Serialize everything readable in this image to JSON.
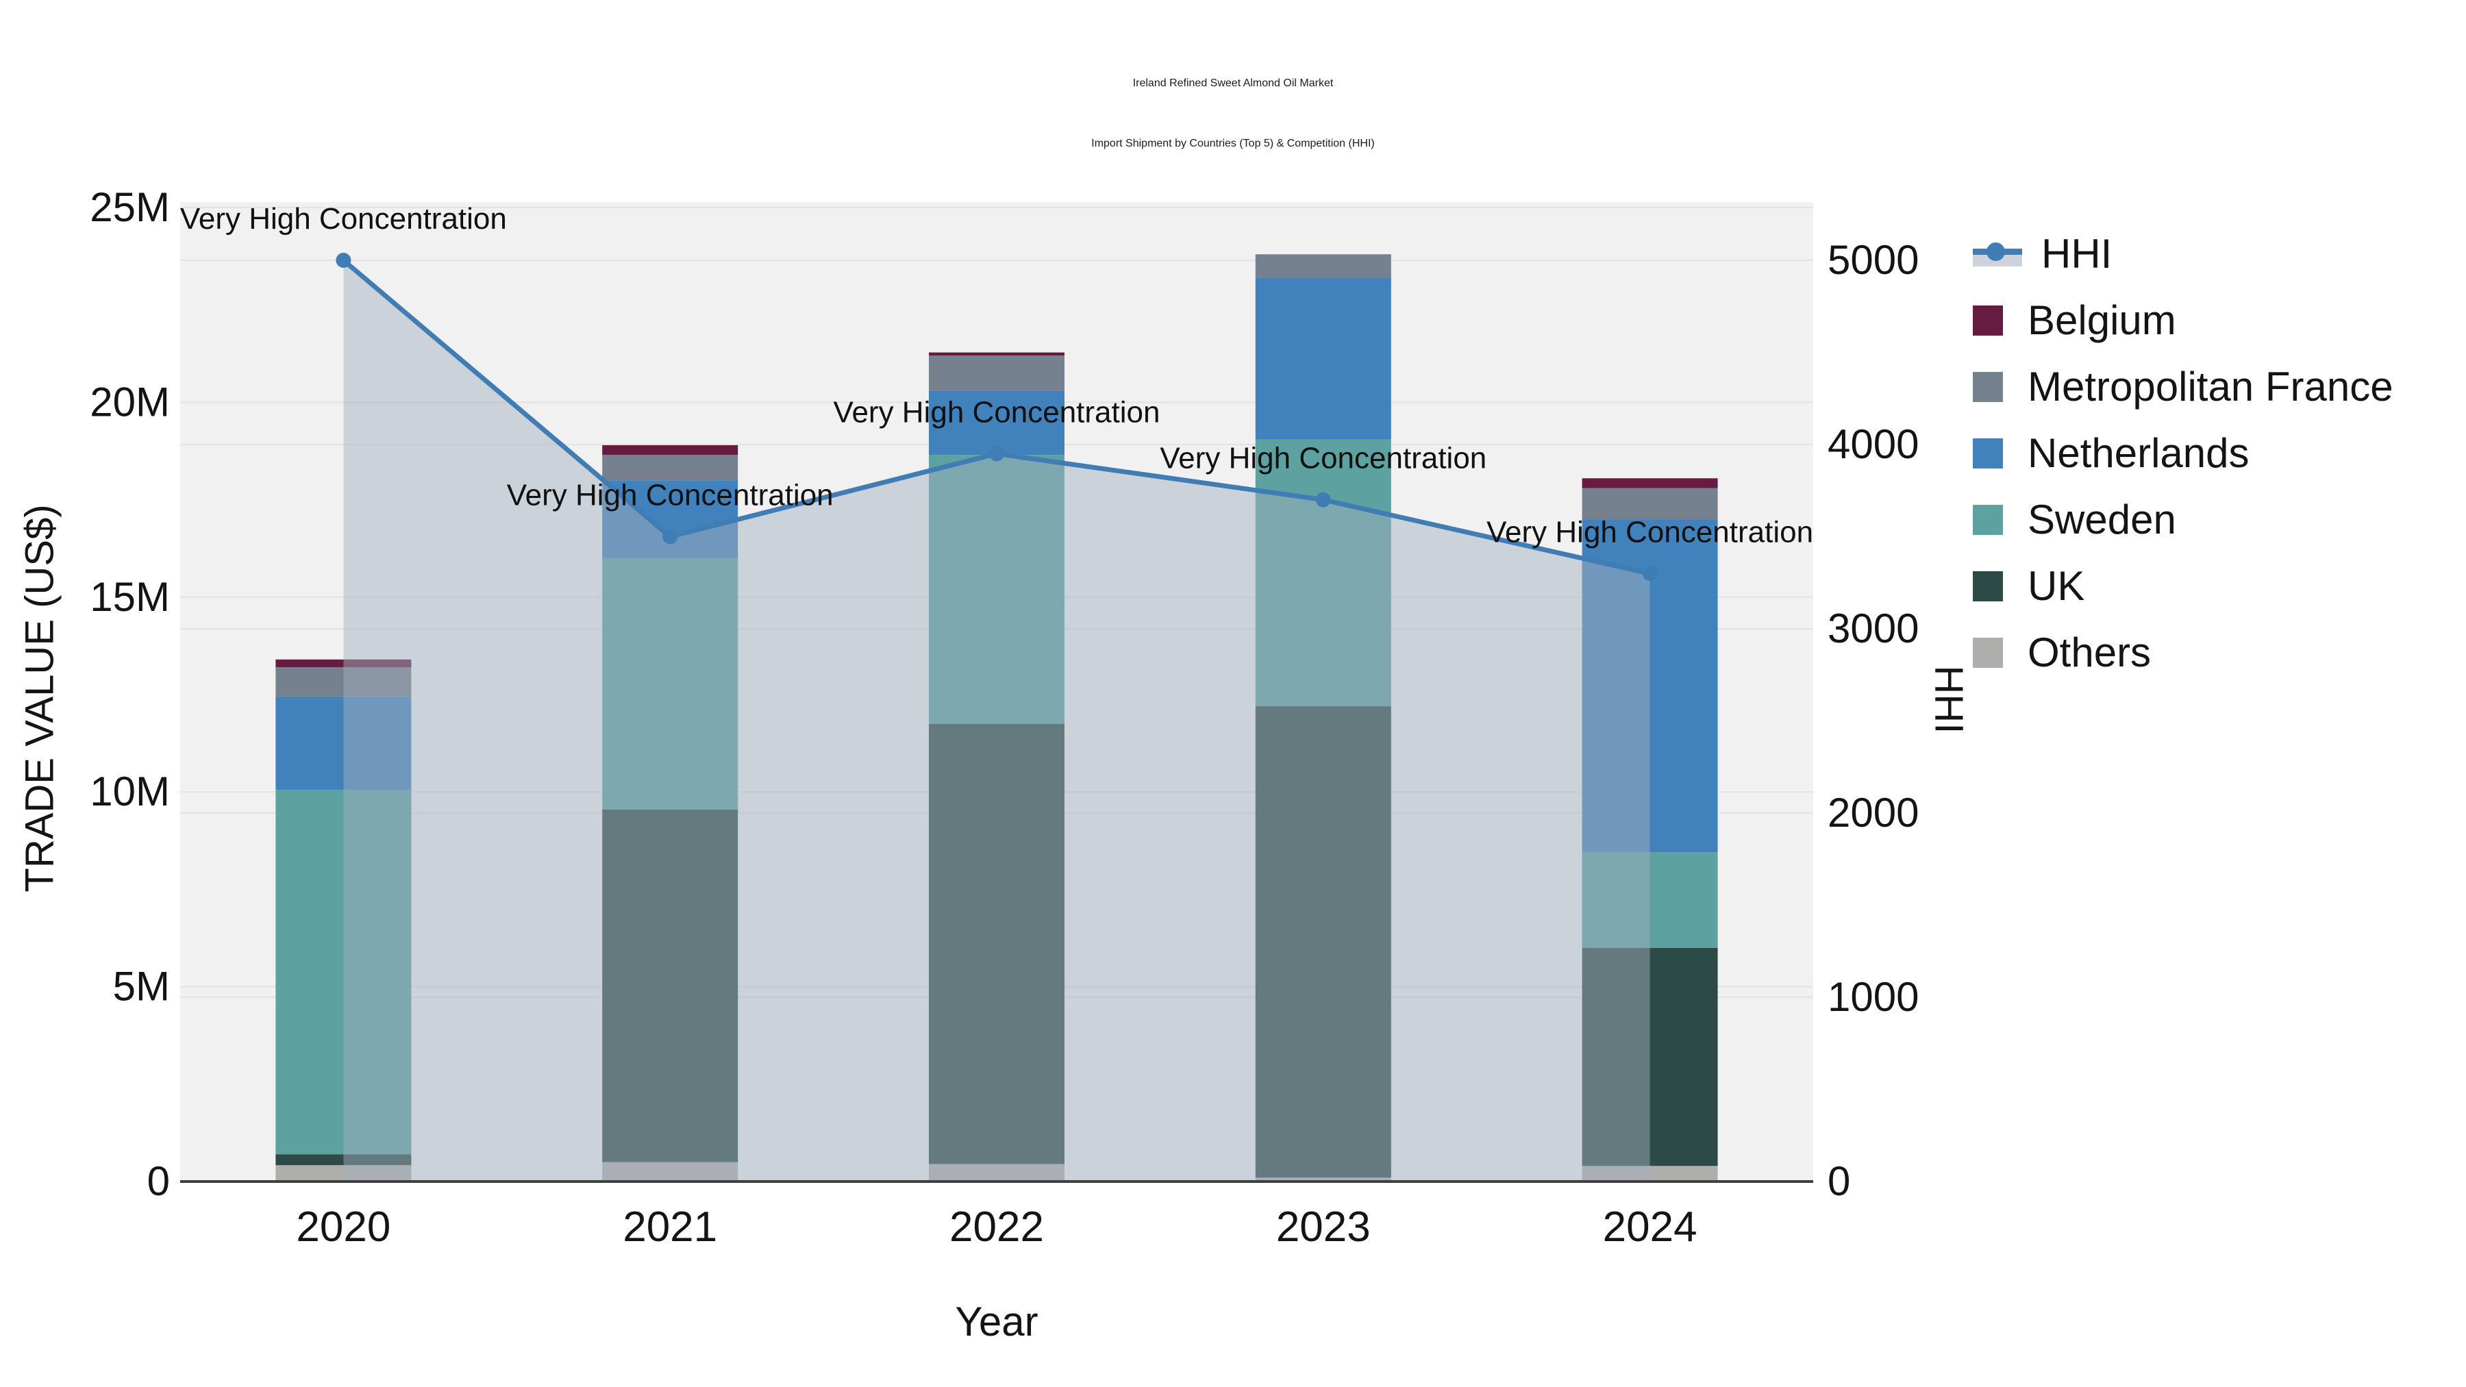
{
  "title": {
    "line1": "Ireland Refined Sweet Almond Oil Market",
    "line2": "Import Shipment by Countries (Top 5) & Competition (HHI)"
  },
  "chart_data": {
    "type": "bar",
    "subtype": "stacked-bars-with-line-overlay",
    "categories": [
      "2020",
      "2021",
      "2022",
      "2023",
      "2024"
    ],
    "xlabel": "Year",
    "ylabel_left": "TRADE VALUE (US$)",
    "ylabel_right": "HHI",
    "bar_value_unit": "millions of US$",
    "series": [
      {
        "name": "Belgium",
        "color": "#651c40",
        "values": [
          0.2,
          0.25,
          0.08,
          0.0,
          0.25
        ]
      },
      {
        "name": "Metropolitan France",
        "color": "#75818f",
        "values": [
          0.75,
          0.65,
          0.9,
          0.6,
          0.8
        ]
      },
      {
        "name": "Netherlands",
        "color": "#4182bd",
        "values": [
          2.4,
          2.0,
          1.65,
          4.15,
          8.55
        ]
      },
      {
        "name": "Sweden",
        "color": "#5da1a1",
        "values": [
          9.35,
          6.45,
          6.9,
          6.85,
          2.45
        ]
      },
      {
        "name": "UK",
        "color": "#2c4a46",
        "values": [
          0.28,
          9.05,
          11.3,
          12.1,
          5.6
        ]
      },
      {
        "name": "Others",
        "color": "#aeaeac",
        "values": [
          0.42,
          0.5,
          0.45,
          0.1,
          0.4
        ]
      }
    ],
    "stack_order_bottom_to_top": [
      "Others",
      "UK",
      "Sweden",
      "Netherlands",
      "Metropolitan France",
      "Belgium"
    ],
    "bar_totals": [
      13.4,
      18.9,
      21.28,
      23.8,
      18.05
    ],
    "line_series": {
      "name": "HHI",
      "color": "#3f7db4",
      "area_fill": "rgba(164,175,191,0.48)",
      "values": [
        5000,
        3500,
        3950,
        3700,
        3300
      ]
    },
    "annotations": {
      "text": "Very High Concentration",
      "applies_to_each_point": true
    },
    "axis_left": {
      "tick_labels": [
        "0",
        "5M",
        "10M",
        "15M",
        "20M",
        "25M"
      ],
      "tick_values": [
        0,
        5,
        10,
        15,
        20,
        25
      ],
      "range_max": 25
    },
    "axis_right": {
      "tick_labels": [
        "0",
        "1000",
        "2000",
        "3000",
        "4000",
        "5000"
      ],
      "tick_values": [
        0,
        1000,
        2000,
        3000,
        4000,
        5000
      ],
      "range_max": 5000
    },
    "grid": true,
    "legend_position": "right",
    "legend_items": [
      "HHI",
      "Belgium",
      "Metropolitan France",
      "Netherlands",
      "Sweden",
      "UK",
      "Others"
    ]
  },
  "colors": {
    "plot_background": "#f1f1f1",
    "page_background": "#ffffff",
    "gridline": "#e3e3e3",
    "axis_line": "#3f3f3f",
    "tick_text": "#141414",
    "annotation_text": "#111111"
  }
}
